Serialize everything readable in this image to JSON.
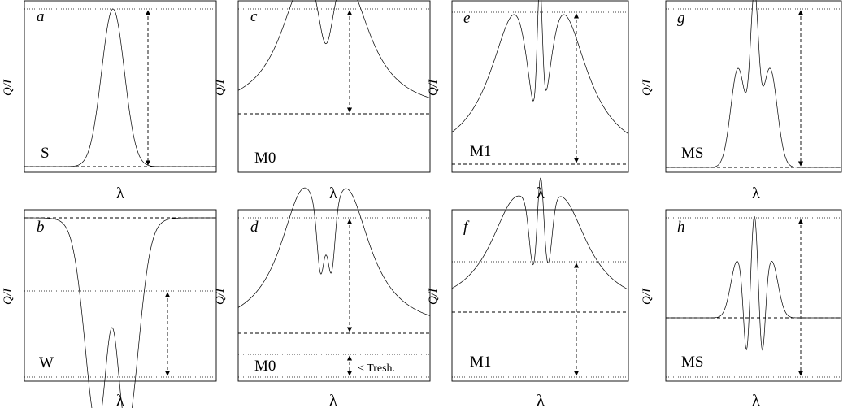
{
  "panels": [
    {
      "letter": "a",
      "code": "S",
      "ylabel": "Q/I",
      "xlabel": "λ"
    },
    {
      "letter": "c",
      "code": "M0",
      "ylabel": "Q/I",
      "xlabel": "λ"
    },
    {
      "letter": "e",
      "code": "M1",
      "ylabel": "Q/I",
      "xlabel": "λ"
    },
    {
      "letter": "g",
      "code": "MS",
      "ylabel": "Q/I",
      "xlabel": "λ"
    },
    {
      "letter": "b",
      "code": "W",
      "ylabel": "Q/I",
      "xlabel": "λ"
    },
    {
      "letter": "d",
      "code": "M0",
      "ylabel": "Q/I",
      "xlabel": "λ",
      "note": "< Tresh."
    },
    {
      "letter": "f",
      "code": "M1",
      "ylabel": "Q/I",
      "xlabel": "λ"
    },
    {
      "letter": "h",
      "code": "MS",
      "ylabel": "Q/I",
      "xlabel": "λ"
    }
  ]
}
